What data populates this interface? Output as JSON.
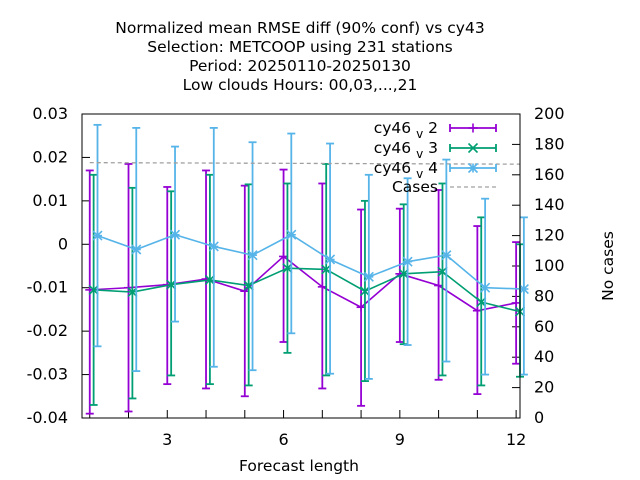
{
  "chart_data": {
    "type": "line",
    "title_lines": [
      "Normalized mean RMSE diff (90% conf) vs cy43",
      "Selection: METCOOP using   231 stations",
      "Period: 20250110-20250130",
      "Low clouds   Hours:  00,03,...,21"
    ],
    "xlabel": "Forecast length",
    "ylabel": "",
    "y2label": "No cases",
    "xlim": [
      0.8,
      12.1
    ],
    "ylim": [
      -0.04,
      0.03
    ],
    "y2lim": [
      0,
      200
    ],
    "xticks": [
      3,
      6,
      9,
      12
    ],
    "yticks": [
      0.03,
      0.02,
      0.01,
      0,
      -0.01,
      -0.02,
      -0.03,
      -0.04
    ],
    "yticklabels": [
      "0.03",
      "0.02",
      "0.01",
      "0",
      "-0.01",
      "-0.02",
      "-0.03",
      "-0.04"
    ],
    "y2ticks": [
      200,
      180,
      160,
      140,
      120,
      100,
      80,
      60,
      40,
      20,
      0
    ],
    "legend_position": "top-right",
    "series": [
      {
        "name": "cy46_v_2",
        "label_main": "cy46",
        "label_sub": "v",
        "label_tail": "2",
        "color": "#9400d3",
        "marker": "plus",
        "x": [
          1,
          2,
          3,
          4,
          5,
          6,
          7,
          8,
          9,
          10,
          11,
          12
        ],
        "y": [
          -0.0105,
          -0.01,
          -0.0093,
          -0.008,
          -0.0108,
          -0.0028,
          -0.0098,
          -0.0145,
          -0.0068,
          -0.0095,
          -0.0153,
          -0.0135
        ],
        "lo": [
          -0.039,
          -0.0385,
          -0.0322,
          -0.0332,
          -0.035,
          -0.0225,
          -0.0332,
          -0.0372,
          -0.0225,
          -0.0312,
          -0.0345,
          -0.0275
        ],
        "hi": [
          0.017,
          0.0185,
          0.0132,
          0.017,
          0.0135,
          0.0172,
          0.014,
          0.008,
          0.0082,
          0.0125,
          0.0042,
          0.0005
        ]
      },
      {
        "name": "cy46_v_3",
        "label_main": "cy46",
        "label_sub": "v",
        "label_tail": "3",
        "color": "#009e73",
        "marker": "cross",
        "x": [
          1.1,
          2.1,
          3.1,
          4.1,
          5.1,
          6.1,
          7.1,
          8.1,
          9.1,
          10.1,
          11.1,
          12.1
        ],
        "y": [
          -0.0105,
          -0.011,
          -0.0093,
          -0.0082,
          -0.0095,
          -0.0055,
          -0.0058,
          -0.0108,
          -0.0068,
          -0.0063,
          -0.0133,
          -0.0155
        ],
        "lo": [
          -0.037,
          -0.0355,
          -0.0302,
          -0.0322,
          -0.0325,
          -0.025,
          -0.0302,
          -0.0315,
          -0.023,
          -0.0302,
          -0.0325,
          -0.0305
        ],
        "hi": [
          0.016,
          0.013,
          0.0122,
          0.016,
          0.0138,
          0.014,
          0.0185,
          0.01,
          0.0092,
          0.014,
          0.0062,
          0.0
        ]
      },
      {
        "name": "cy46_v_4",
        "label_main": "cy46",
        "label_sub": "v",
        "label_tail": "4",
        "color": "#56b4e9",
        "marker": "star",
        "x": [
          1.2,
          2.2,
          3.2,
          4.2,
          5.2,
          6.2,
          7.2,
          8.2,
          9.2,
          10.2,
          11.2,
          12.2
        ],
        "y": [
          0.002,
          -0.0012,
          0.0022,
          -0.0005,
          -0.0025,
          0.0022,
          -0.0035,
          -0.0075,
          -0.004,
          -0.0025,
          -0.01,
          -0.0103
        ],
        "lo": [
          -0.0235,
          -0.0292,
          -0.0178,
          -0.0282,
          -0.029,
          -0.0205,
          -0.0298,
          -0.031,
          -0.0232,
          -0.027,
          -0.03,
          -0.03
        ],
        "hi": [
          0.0275,
          0.0268,
          0.0225,
          0.0268,
          0.0235,
          0.0255,
          0.0232,
          0.016,
          0.0152,
          0.0195,
          0.0105,
          0.0062
        ]
      },
      {
        "name": "Cases",
        "label_main": "Cases",
        "color": "#a0a0a0",
        "style": "dashed",
        "axis": "y2",
        "x": [
          1,
          12.1
        ],
        "y2": [
          168,
          167
        ]
      }
    ]
  }
}
